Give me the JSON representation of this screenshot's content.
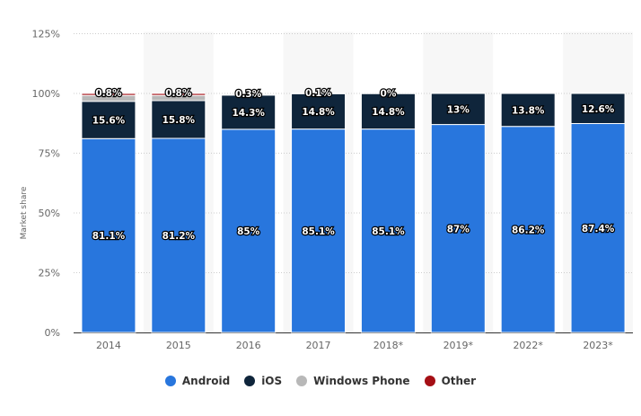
{
  "chart_data": {
    "type": "bar",
    "stacked": true,
    "categories": [
      "2014",
      "2015",
      "2016",
      "2017",
      "2018*",
      "2019*",
      "2022*",
      "2023*"
    ],
    "series": [
      {
        "name": "Android",
        "color": "#2876dd",
        "values": [
          81.1,
          81.2,
          85,
          85.1,
          85.1,
          87,
          86.2,
          87.4
        ],
        "labels": [
          "81.1%",
          "81.2%",
          "85%",
          "85.1%",
          "85.1%",
          "87%",
          "86.2%",
          "87.4%"
        ]
      },
      {
        "name": "iOS",
        "color": "#0f253b",
        "values": [
          15.6,
          15.8,
          14.3,
          14.8,
          14.8,
          13,
          13.8,
          12.6
        ],
        "labels": [
          "15.6%",
          "15.8%",
          "14.3%",
          "14.8%",
          "14.8%",
          "13%",
          "13.8%",
          "12.6%"
        ]
      },
      {
        "name": "Windows Phone",
        "color": "#b8b8b8",
        "values": [
          2.5,
          2.2,
          0.3,
          0.1,
          0,
          0,
          0,
          0
        ],
        "labels": [
          "",
          "",
          "0.3%",
          "0.1%",
          "0%",
          "",
          "",
          ""
        ]
      },
      {
        "name": "Other",
        "color": "#a50f15",
        "values": [
          0.8,
          0.8,
          0,
          0,
          0,
          0,
          0,
          0
        ],
        "labels": [
          "0.8%",
          "0.8%",
          "",
          "",
          "",
          "",
          "",
          ""
        ]
      }
    ],
    "ylabel": "Market share",
    "ylim": [
      0,
      125
    ],
    "yticks": [
      "0%",
      "25%",
      "50%",
      "75%",
      "100%",
      "125%"
    ],
    "grid": true,
    "legend": "bottom"
  }
}
